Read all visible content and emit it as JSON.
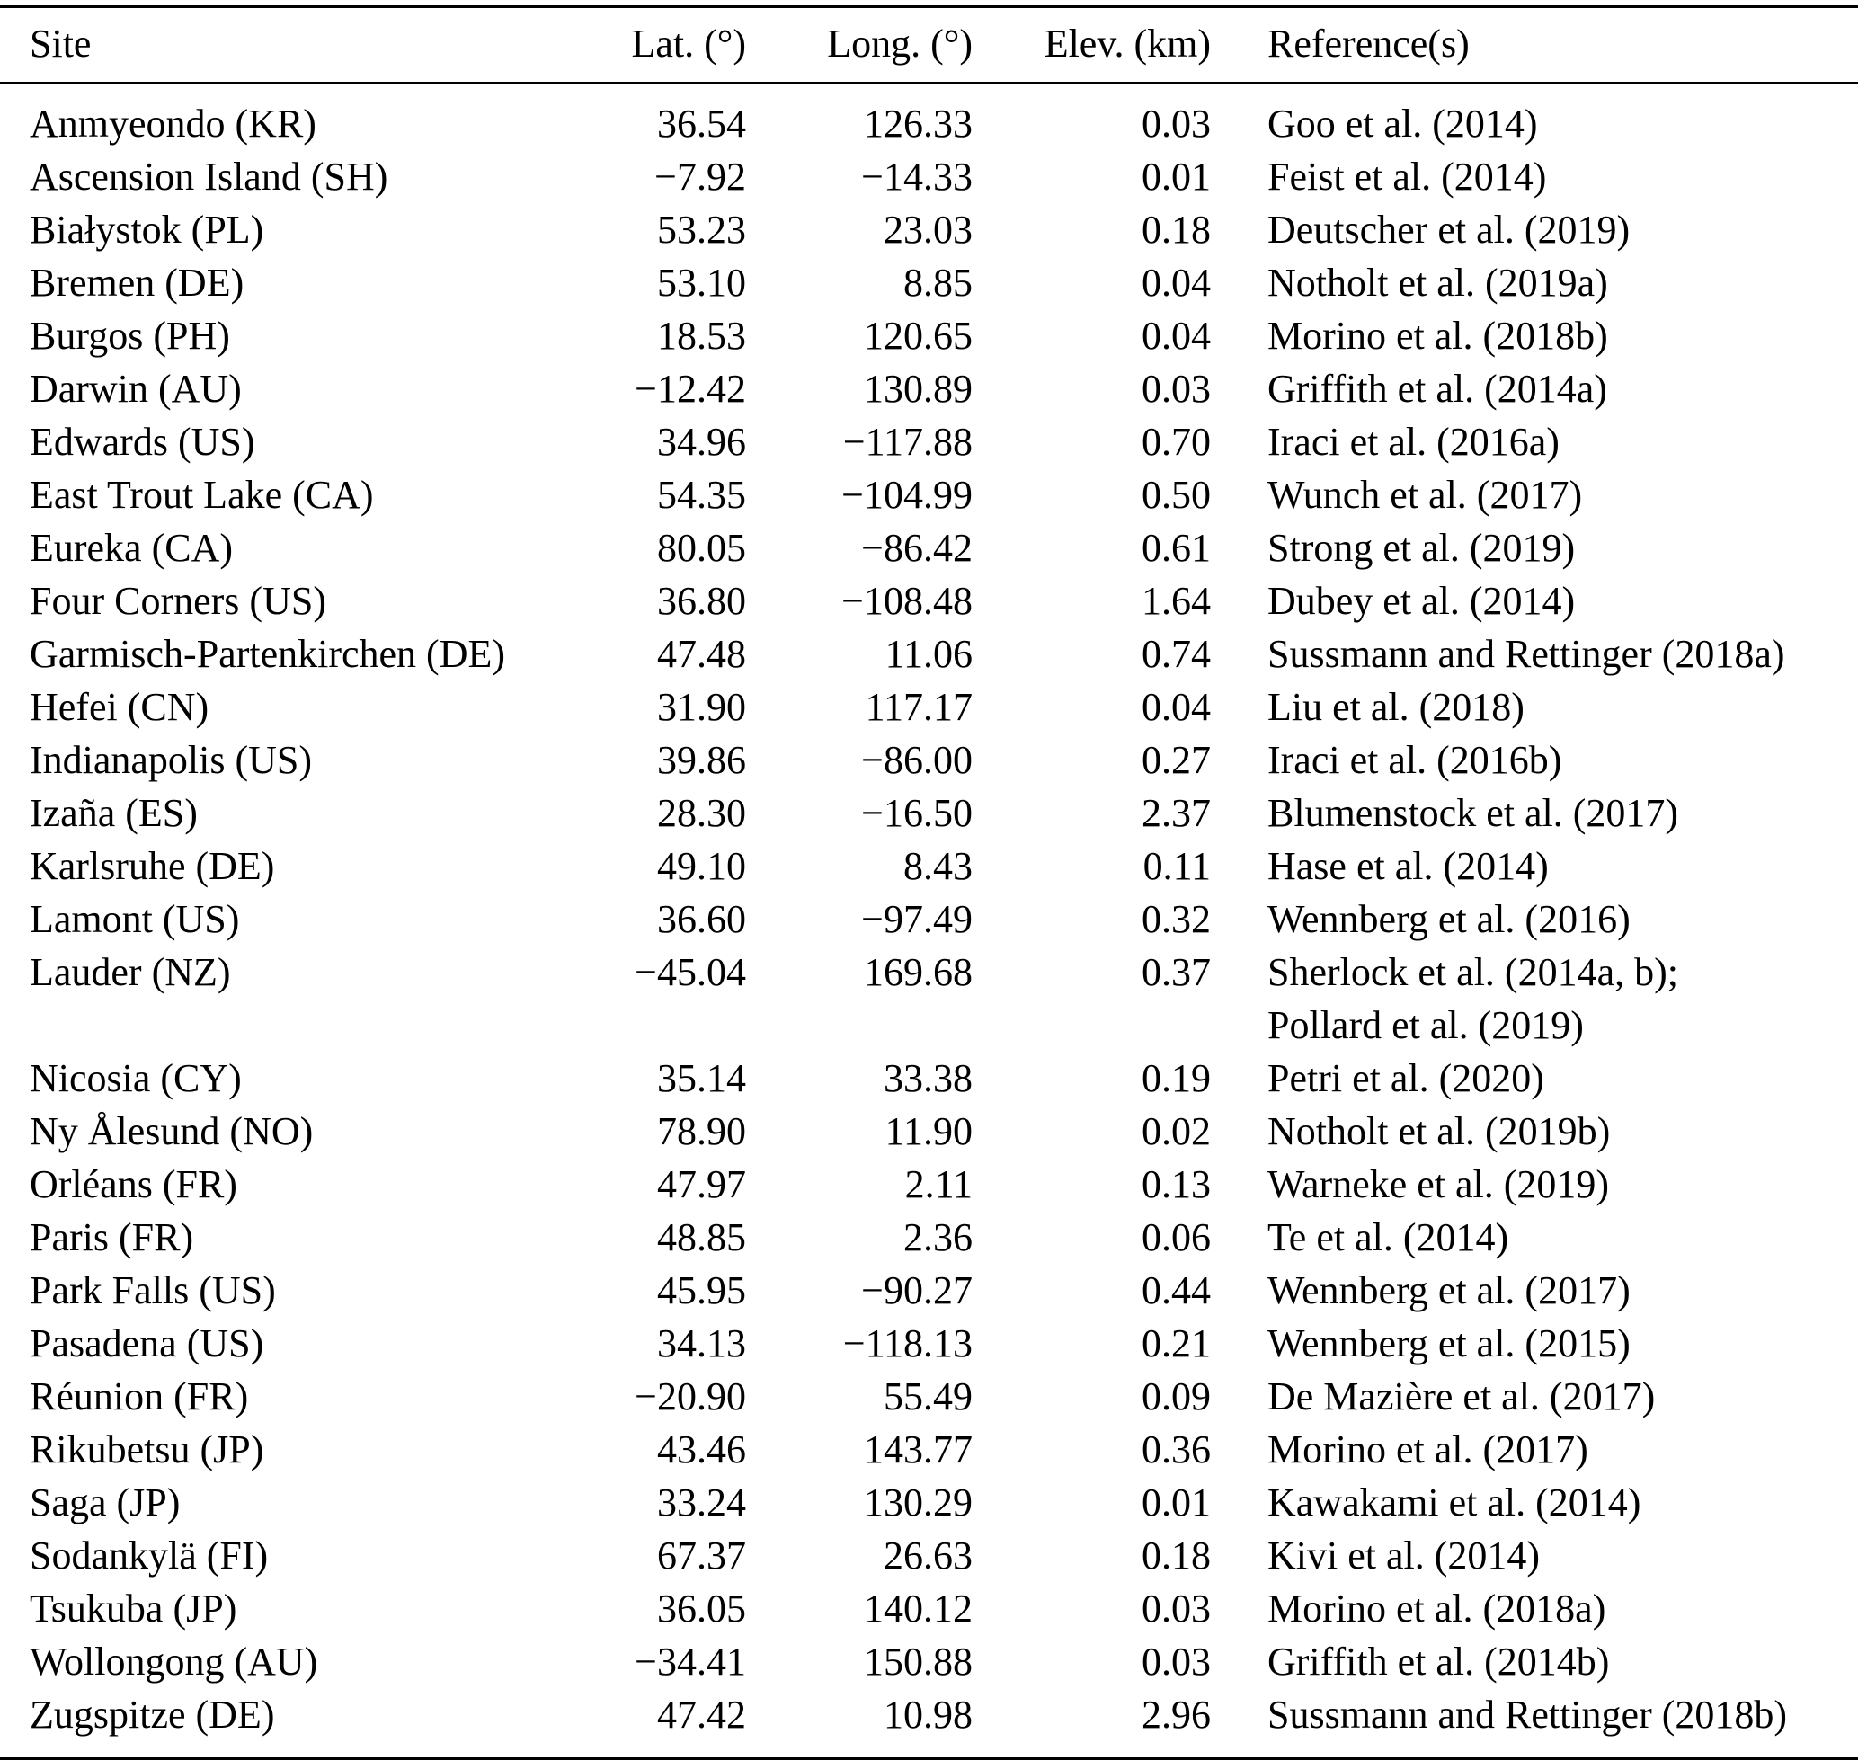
{
  "table": {
    "headers": [
      "Site",
      "Lat. (°)",
      "Long. (°)",
      "Elev. (km)",
      "Reference(s)"
    ],
    "rows": [
      {
        "site": "Anmyeondo (KR)",
        "lat": "36.54",
        "long": "126.33",
        "elev": "0.03",
        "ref": "Goo et al. (2014)"
      },
      {
        "site": "Ascension Island (SH)",
        "lat": "−7.92",
        "long": "−14.33",
        "elev": "0.01",
        "ref": "Feist et al. (2014)"
      },
      {
        "site": "Białystok (PL)",
        "lat": "53.23",
        "long": "23.03",
        "elev": "0.18",
        "ref": "Deutscher et al. (2019)"
      },
      {
        "site": "Bremen (DE)",
        "lat": "53.10",
        "long": "8.85",
        "elev": "0.04",
        "ref": "Notholt et al. (2019a)"
      },
      {
        "site": "Burgos (PH)",
        "lat": "18.53",
        "long": "120.65",
        "elev": "0.04",
        "ref": "Morino et al. (2018b)"
      },
      {
        "site": "Darwin (AU)",
        "lat": "−12.42",
        "long": "130.89",
        "elev": "0.03",
        "ref": "Griffith et al. (2014a)"
      },
      {
        "site": "Edwards (US)",
        "lat": "34.96",
        "long": "−117.88",
        "elev": "0.70",
        "ref": "Iraci et al. (2016a)"
      },
      {
        "site": "East Trout Lake (CA)",
        "lat": "54.35",
        "long": "−104.99",
        "elev": "0.50",
        "ref": "Wunch et al. (2017)"
      },
      {
        "site": "Eureka (CA)",
        "lat": "80.05",
        "long": "−86.42",
        "elev": "0.61",
        "ref": "Strong et al. (2019)"
      },
      {
        "site": "Four Corners (US)",
        "lat": "36.80",
        "long": "−108.48",
        "elev": "1.64",
        "ref": "Dubey et al. (2014)"
      },
      {
        "site": "Garmisch-Partenkirchen (DE)",
        "lat": "47.48",
        "long": "11.06",
        "elev": "0.74",
        "ref": "Sussmann and Rettinger (2018a)"
      },
      {
        "site": "Hefei (CN)",
        "lat": "31.90",
        "long": "117.17",
        "elev": "0.04",
        "ref": "Liu et al. (2018)"
      },
      {
        "site": "Indianapolis (US)",
        "lat": "39.86",
        "long": "−86.00",
        "elev": "0.27",
        "ref": "Iraci et al. (2016b)"
      },
      {
        "site": "Izaña (ES)",
        "lat": "28.30",
        "long": "−16.50",
        "elev": "2.37",
        "ref": "Blumenstock et al. (2017)"
      },
      {
        "site": "Karlsruhe (DE)",
        "lat": "49.10",
        "long": "8.43",
        "elev": "0.11",
        "ref": "Hase et al. (2014)"
      },
      {
        "site": "Lamont (US)",
        "lat": "36.60",
        "long": "−97.49",
        "elev": "0.32",
        "ref": "Wennberg et al. (2016)"
      },
      {
        "site": "Lauder (NZ)",
        "lat": "−45.04",
        "long": "169.68",
        "elev": "0.37",
        "ref": "Sherlock et al. (2014a, b);\nPollard et al. (2019)"
      },
      {
        "site": "Nicosia (CY)",
        "lat": "35.14",
        "long": "33.38",
        "elev": "0.19",
        "ref": "Petri et al. (2020)"
      },
      {
        "site": "Ny Ålesund (NO)",
        "lat": "78.90",
        "long": "11.90",
        "elev": "0.02",
        "ref": "Notholt et al. (2019b)"
      },
      {
        "site": "Orléans (FR)",
        "lat": "47.97",
        "long": "2.11",
        "elev": "0.13",
        "ref": "Warneke et al. (2019)"
      },
      {
        "site": "Paris (FR)",
        "lat": "48.85",
        "long": "2.36",
        "elev": "0.06",
        "ref": "Te et al. (2014)"
      },
      {
        "site": "Park Falls (US)",
        "lat": "45.95",
        "long": "−90.27",
        "elev": "0.44",
        "ref": "Wennberg et al. (2017)"
      },
      {
        "site": "Pasadena (US)",
        "lat": "34.13",
        "long": "−118.13",
        "elev": "0.21",
        "ref": "Wennberg et al. (2015)"
      },
      {
        "site": "Réunion (FR)",
        "lat": "−20.90",
        "long": "55.49",
        "elev": "0.09",
        "ref": "De Mazière et al. (2017)"
      },
      {
        "site": "Rikubetsu (JP)",
        "lat": "43.46",
        "long": "143.77",
        "elev": "0.36",
        "ref": "Morino et al. (2017)"
      },
      {
        "site": "Saga (JP)",
        "lat": "33.24",
        "long": "130.29",
        "elev": "0.01",
        "ref": "Kawakami et al. (2014)"
      },
      {
        "site": "Sodankylä (FI)",
        "lat": "67.37",
        "long": "26.63",
        "elev": "0.18",
        "ref": "Kivi et al. (2014)"
      },
      {
        "site": "Tsukuba (JP)",
        "lat": "36.05",
        "long": "140.12",
        "elev": "0.03",
        "ref": "Morino et al. (2018a)"
      },
      {
        "site": "Wollongong (AU)",
        "lat": "−34.41",
        "long": "150.88",
        "elev": "0.03",
        "ref": "Griffith et al. (2014b)"
      },
      {
        "site": "Zugspitze (DE)",
        "lat": "47.42",
        "long": "10.98",
        "elev": "2.96",
        "ref": "Sussmann and Rettinger (2018b)"
      }
    ]
  }
}
